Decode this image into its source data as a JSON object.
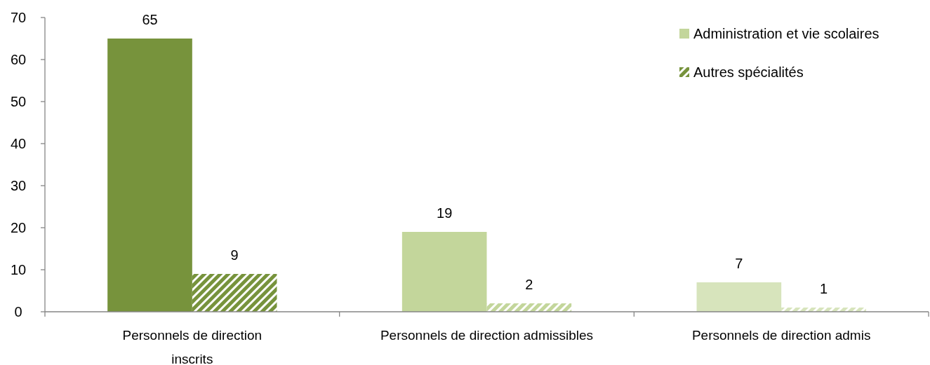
{
  "chart_data": {
    "type": "bar",
    "categories": [
      "Personnels de direction\ninscrits",
      "Personnels de direction admissibles",
      "Personnels de direction admis"
    ],
    "series": [
      {
        "name": "Administration et vie scolaires",
        "color": "#c3d69b",
        "colors": [
          "#77933c",
          "#c3d69b",
          "#d7e4bc"
        ],
        "values": [
          65,
          19,
          7
        ]
      },
      {
        "name": "Autres spécialités",
        "color": "#77933c",
        "colors": [
          "#77933c",
          "#c3d69b",
          "#d7e4bc"
        ],
        "values": [
          9,
          2,
          1
        ]
      }
    ],
    "ylim": [
      0,
      70
    ],
    "yticks": [
      0,
      10,
      20,
      30,
      40,
      50,
      60,
      70
    ],
    "data_labels": true,
    "legend": "top right",
    "grid": false
  }
}
